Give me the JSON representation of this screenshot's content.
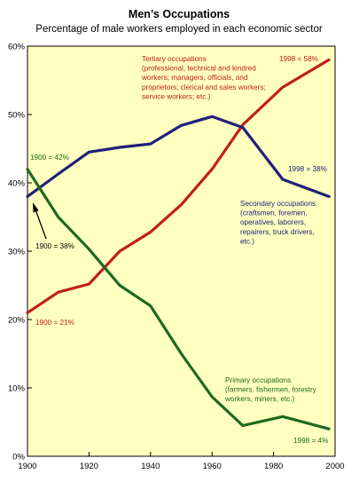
{
  "chart_data": {
    "type": "line",
    "title": "Men’s Occupations",
    "subtitle": "Percentage of male workers employed in each economic sector",
    "xlabel": "",
    "ylabel": "",
    "xlim": [
      1900,
      2000
    ],
    "ylim": [
      0,
      60
    ],
    "x_ticks": [
      "1900",
      "1920",
      "1940",
      "1960",
      "1980",
      "2000"
    ],
    "y_ticks": [
      "0%",
      "10%",
      "20%",
      "30%",
      "40%",
      "50%",
      "60%"
    ],
    "plot_background": "#ffffc0",
    "grid": false,
    "series": [
      {
        "key": "tertiary",
        "color": "#c0201a",
        "x": [
          1900,
          1910,
          1920,
          1930,
          1940,
          1950,
          1960,
          1970,
          1983,
          1998
        ],
        "values": [
          21,
          24,
          25.2,
          30,
          32.8,
          36.8,
          42,
          48.5,
          54,
          58
        ]
      },
      {
        "key": "secondary",
        "color": "#20207a",
        "x": [
          1900,
          1910,
          1920,
          1930,
          1940,
          1950,
          1960,
          1970,
          1983,
          1998
        ],
        "values": [
          38,
          41.3,
          44.5,
          45.2,
          45.7,
          48.4,
          49.7,
          48.1,
          40.5,
          38
        ]
      },
      {
        "key": "primary",
        "color": "#1e6a1e",
        "x": [
          1900,
          1910,
          1920,
          1930,
          1940,
          1950,
          1960,
          1970,
          1983,
          1998
        ],
        "values": [
          42,
          35,
          30.3,
          25,
          22,
          15,
          8.7,
          4.5,
          5.8,
          4
        ]
      }
    ],
    "annotations": {
      "tertiary_label": [
        "Tertiary occupations",
        "(professional, technical and kindred",
        "workers; managers, officials, and",
        "proprietors; clerical and sales workers;",
        "service workers; etc.)"
      ],
      "tertiary_end": "1998 = 58%",
      "tertiary_start": "1900 = 21%",
      "secondary_label": [
        "Secondary occupations",
        "(craftsmen, foremen,",
        "operatives, laborers,",
        "repairers, truck drivers,",
        "etc.)"
      ],
      "secondary_end": "1998 = 38%",
      "secondary_start": "1900 = 38%",
      "primary_label": [
        "Primary occupations",
        "(farmers, fishermen, forestry",
        "workers, miners, etc.)"
      ],
      "primary_end": "1998 = 4%",
      "primary_start": "1900 = 42%"
    }
  }
}
